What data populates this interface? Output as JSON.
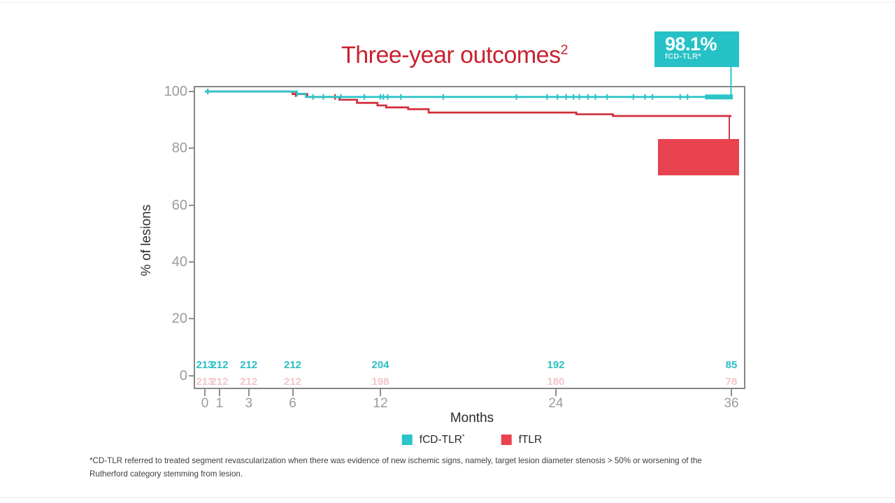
{
  "title": {
    "text": "Three-year outcomes",
    "sup": "2"
  },
  "callouts": {
    "teal": {
      "value": "98.1%",
      "label": "fCD-TLR*",
      "anchor_month": 36
    },
    "red": {
      "value": "",
      "label": "",
      "anchor_month": 36
    }
  },
  "chart_data": {
    "type": "line",
    "subtype": "kaplan-meier-step",
    "title": "Three-year outcomes²",
    "xlabel": "Months",
    "ylabel": "% of lesions",
    "xlim": [
      0,
      36
    ],
    "ylim": [
      0,
      100
    ],
    "x_ticks": [
      0,
      1,
      3,
      6,
      12,
      24,
      36
    ],
    "y_ticks": [
      100,
      80,
      60,
      40,
      20,
      0
    ],
    "grid": false,
    "legend_position": "bottom",
    "series": [
      {
        "name": "fCD-TLR*",
        "color": "#2bc5c9",
        "final_value_pct": 98.1,
        "steps": [
          [
            0,
            100
          ],
          [
            6.3,
            99.2
          ],
          [
            6.9,
            98.1
          ],
          [
            36,
            98.1
          ]
        ],
        "censor_months": [
          0.2,
          6.3,
          7.4,
          8.1,
          9.3,
          10.9,
          12.0,
          12.2,
          12.5,
          13.4,
          16.3,
          21.3,
          23.4,
          24.1,
          24.7,
          25.2,
          25.6,
          26.2,
          26.7,
          27.5,
          29.3,
          30.1,
          30.6,
          32.5,
          33.0
        ],
        "censor_cluster": {
          "from": 34.2,
          "to": 36.1
        }
      },
      {
        "name": "fTLR",
        "color": "#d12e3e",
        "final_value_pct": 91.4,
        "steps": [
          [
            0,
            100
          ],
          [
            6.0,
            99.1
          ],
          [
            7.0,
            98.1
          ],
          [
            9.2,
            97.1
          ],
          [
            10.4,
            96.0
          ],
          [
            11.8,
            95.1
          ],
          [
            12.4,
            94.4
          ],
          [
            13.9,
            93.8
          ],
          [
            15.3,
            92.6
          ],
          [
            25.4,
            92.0
          ],
          [
            27.9,
            91.4
          ],
          [
            36,
            91.4
          ]
        ],
        "censor_months": [
          0.2,
          6.2,
          8.9
        ],
        "censor_cluster": null
      }
    ],
    "at_risk": {
      "months": [
        0,
        1,
        3,
        6,
        12,
        24,
        36
      ],
      "rows": [
        {
          "name": "fCD-TLR*",
          "color": "#2abfc4",
          "values": [
            "213",
            "212",
            "212",
            "212",
            "204",
            "192",
            "85"
          ]
        },
        {
          "name": "fTLR",
          "color": "#f2c6ca",
          "values": [
            "213",
            "212",
            "212",
            "212",
            "198",
            "180",
            "78"
          ]
        }
      ]
    },
    "legend": [
      {
        "label": "fCD-TLR",
        "sup": "*",
        "color": "#2bc5c9"
      },
      {
        "label": "fTLR",
        "sup": "",
        "color": "#e8434f"
      }
    ]
  },
  "footnote": {
    "line1": "*CD-TLR referred to treated segment revascularization when there was evidence of new ischemic signs, namely, target lesion diameter stenosis > 50% or worsening of the",
    "line2": "Rutherford category stemming from lesion."
  },
  "colors": {
    "teal": "#26c1c6",
    "box_red": "#e8424f",
    "title_red": "#c92130",
    "connector_teal": "#2bc5c9",
    "connector_red": "#d4374a"
  }
}
